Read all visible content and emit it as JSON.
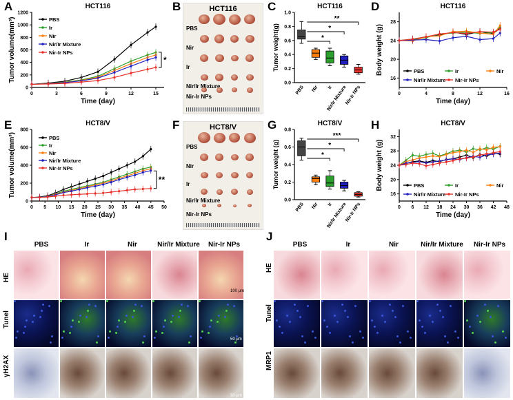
{
  "panels": {
    "A": {
      "label": "A",
      "title": "HCT116",
      "xlabel": "Time (day)",
      "ylabel": "Tumor volume(mm³)",
      "sig": "*"
    },
    "B": {
      "label": "B",
      "title": "HCT116",
      "rows": [
        "PBS",
        "Nir",
        "Ir",
        "Nir/Ir Mixture",
        "Nir-Ir NPs"
      ]
    },
    "C": {
      "label": "C",
      "title": "HCT116",
      "ylabel": "Tumor weight(g)",
      "sig": [
        "**",
        "*",
        "*"
      ]
    },
    "D": {
      "label": "D",
      "title": "HCT116",
      "xlabel": "Time (day)",
      "ylabel": "Body weight (g)"
    },
    "E": {
      "label": "E",
      "title": "HCT8/V",
      "xlabel": "Time (day)",
      "ylabel": "Tumor volume(mm³)",
      "sig": "**"
    },
    "F": {
      "label": "F",
      "title": "HCT8/V",
      "rows": [
        "PBS",
        "Nir",
        "Ir",
        "Nir/Ir Mixture",
        "Nir-Ir NPs"
      ]
    },
    "G": {
      "label": "G",
      "title": "HCT8/V",
      "ylabel": "Tumor weight (g)",
      "sig": [
        "***",
        "*",
        "*"
      ]
    },
    "H": {
      "label": "H",
      "title": "HCT8/V",
      "xlabel": "Time (day)",
      "ylabel": "Body weight (g)"
    },
    "I": {
      "label": "I",
      "cols": [
        "PBS",
        "Ir",
        "Nir",
        "Nir/Ir  Mixture",
        "Nir-Ir NPs"
      ],
      "rows": [
        "HE",
        "Tunel",
        "γH2AX"
      ],
      "scale1": "100 μm",
      "scale2": "50 μm",
      "scale3": "50 μm"
    },
    "J": {
      "label": "J",
      "cols": [
        "PBS",
        "Ir",
        "Nir",
        "Nir/Ir Mixture",
        "Nir-Ir NPs"
      ],
      "rows": [
        "HE",
        "Tunel",
        "MRP1"
      ]
    }
  },
  "colors": {
    "PBS": "#000000",
    "Ir": "#2ca02c",
    "Nir": "#ff7f0e",
    "Mixture": "#1f1fbf",
    "NPs": "#e8312a"
  },
  "chart_data": [
    {
      "id": "A",
      "type": "line",
      "title": "HCT116",
      "xlabel": "Time (day)",
      "ylabel": "Tumor volume(mm³)",
      "x": [
        0,
        2,
        4,
        6,
        8,
        10,
        12,
        14,
        15
      ],
      "xlim": [
        0,
        16
      ],
      "xticks": [
        0,
        3,
        6,
        9,
        12,
        15
      ],
      "ylim": [
        0,
        1200
      ],
      "yticks": [
        0,
        200,
        400,
        600,
        800,
        1000,
        1200
      ],
      "series": [
        {
          "name": "PBS",
          "values": [
            50,
            70,
            100,
            160,
            250,
            450,
            680,
            880,
            970
          ]
        },
        {
          "name": "Ir",
          "values": [
            50,
            65,
            85,
            120,
            180,
            300,
            420,
            520,
            560
          ]
        },
        {
          "name": "Nir",
          "values": [
            50,
            62,
            80,
            110,
            165,
            270,
            380,
            480,
            520
          ]
        },
        {
          "name": "Nir/Ir Mixture",
          "values": [
            50,
            60,
            78,
            105,
            150,
            240,
            340,
            440,
            480
          ]
        },
        {
          "name": "Nir-Ir NPs",
          "values": [
            50,
            55,
            65,
            85,
            110,
            160,
            230,
            290,
            320
          ]
        }
      ]
    },
    {
      "id": "C",
      "type": "box",
      "title": "HCT116",
      "ylabel": "Tumor weight(g)",
      "ylim": [
        0,
        1.0
      ],
      "yticks": [
        0.0,
        0.2,
        0.4,
        0.6,
        0.8,
        1.0
      ],
      "categories": [
        "PBS",
        "Nir",
        "Ir",
        "Nir/Ir Mixture",
        "Nir-Ir NPs"
      ],
      "boxes": [
        {
          "q1": 0.62,
          "q3": 0.75,
          "min": 0.56,
          "max": 0.87,
          "med": 0.66
        },
        {
          "q1": 0.36,
          "q3": 0.47,
          "min": 0.33,
          "max": 0.49,
          "med": 0.42
        },
        {
          "q1": 0.28,
          "q3": 0.45,
          "min": 0.24,
          "max": 0.49,
          "med": 0.35
        },
        {
          "q1": 0.26,
          "q3": 0.38,
          "min": 0.22,
          "max": 0.4,
          "med": 0.32
        },
        {
          "q1": 0.14,
          "q3": 0.22,
          "min": 0.12,
          "max": 0.26,
          "med": 0.18
        }
      ]
    },
    {
      "id": "D",
      "type": "line",
      "title": "HCT116",
      "xlabel": "Time (day)",
      "ylabel": "Body weight (g)",
      "x": [
        0,
        2,
        4,
        6,
        8,
        10,
        12,
        14,
        15
      ],
      "xlim": [
        0,
        16
      ],
      "xticks": [
        0,
        4,
        8,
        12,
        16
      ],
      "ylim": [
        14,
        30
      ],
      "yticks": [
        16,
        20,
        24,
        28
      ],
      "series": [
        {
          "name": "PBS",
          "values": [
            24,
            24.3,
            24.8,
            25.2,
            25.8,
            25.3,
            25.9,
            25.5,
            26.6
          ]
        },
        {
          "name": "Ir",
          "values": [
            24,
            24.2,
            24.6,
            25.4,
            25.6,
            25.8,
            25.5,
            25.7,
            26.8
          ]
        },
        {
          "name": "Nir",
          "values": [
            24,
            23.9,
            24.8,
            25,
            25.9,
            26,
            25.6,
            25.3,
            27.2
          ]
        },
        {
          "name": "Nir/Ir Mixture",
          "values": [
            24,
            24.1,
            24.2,
            23.9,
            24.6,
            24.9,
            24.2,
            24.4,
            25.6
          ]
        },
        {
          "name": "Nir-Ir NPs",
          "values": [
            24,
            24.3,
            24.8,
            25.4,
            25.7,
            25.5,
            25.9,
            25.8,
            26.4
          ]
        }
      ]
    },
    {
      "id": "E",
      "type": "line",
      "title": "HCT8/V",
      "xlabel": "Time (day)",
      "ylabel": "Tumor volume(mm³)",
      "x": [
        0,
        3,
        6,
        9,
        12,
        15,
        18,
        21,
        24,
        27,
        30,
        33,
        36,
        39,
        42,
        45
      ],
      "xlim": [
        0,
        50
      ],
      "xticks": [
        0,
        5,
        10,
        15,
        20,
        25,
        30,
        35,
        40,
        45,
        50
      ],
      "ylim": [
        0,
        800
      ],
      "yticks": [
        0,
        200,
        400,
        600,
        800
      ],
      "series": [
        {
          "name": "PBS",
          "values": [
            40,
            45,
            60,
            90,
            130,
            160,
            190,
            220,
            250,
            280,
            320,
            360,
            400,
            440,
            500,
            580
          ]
        },
        {
          "name": "Ir",
          "values": [
            40,
            43,
            55,
            80,
            110,
            130,
            150,
            170,
            190,
            210,
            240,
            270,
            300,
            330,
            360,
            380
          ]
        },
        {
          "name": "Nir",
          "values": [
            40,
            42,
            52,
            75,
            100,
            120,
            140,
            160,
            180,
            200,
            225,
            255,
            280,
            310,
            340,
            360
          ]
        },
        {
          "name": "Nir/Ir Mixture",
          "values": [
            40,
            42,
            50,
            70,
            95,
            110,
            130,
            150,
            165,
            185,
            210,
            240,
            265,
            290,
            320,
            340
          ]
        },
        {
          "name": "Nir-Ir NPs",
          "values": [
            40,
            40,
            45,
            55,
            65,
            70,
            75,
            80,
            85,
            90,
            100,
            110,
            120,
            130,
            135,
            140
          ]
        }
      ]
    },
    {
      "id": "G",
      "type": "box",
      "title": "HCT8/V",
      "ylabel": "Tumor weight (g)",
      "ylim": [
        0,
        0.8
      ],
      "yticks": [
        0.0,
        0.2,
        0.4,
        0.6,
        0.8
      ],
      "categories": [
        "PBS",
        "Nir",
        "Ir",
        "Nir/Ir Mixture",
        "Nir-Ir NPs"
      ],
      "boxes": [
        {
          "q1": 0.5,
          "q3": 0.67,
          "min": 0.45,
          "max": 0.7,
          "med": 0.6
        },
        {
          "q1": 0.2,
          "q3": 0.26,
          "min": 0.17,
          "max": 0.28,
          "med": 0.24
        },
        {
          "q1": 0.15,
          "q3": 0.27,
          "min": 0.12,
          "max": 0.33,
          "med": 0.19
        },
        {
          "q1": 0.13,
          "q3": 0.2,
          "min": 0.1,
          "max": 0.22,
          "med": 0.16
        },
        {
          "q1": 0.04,
          "q3": 0.08,
          "min": 0.03,
          "max": 0.09,
          "med": 0.06
        }
      ]
    },
    {
      "id": "H",
      "type": "line",
      "title": "HCT8/V",
      "xlabel": "Time (day)",
      "ylabel": "Body weight (g)",
      "x": [
        0,
        3,
        6,
        9,
        12,
        15,
        18,
        21,
        24,
        27,
        30,
        33,
        36,
        39,
        42,
        45
      ],
      "xlim": [
        0,
        48
      ],
      "xticks": [
        0,
        6,
        12,
        18,
        24,
        30,
        36,
        42,
        48
      ],
      "ylim": [
        14,
        34
      ],
      "yticks": [
        16,
        20,
        24,
        28,
        32
      ],
      "series": [
        {
          "name": "PBS",
          "values": [
            24,
            24.5,
            25,
            25.2,
            24.8,
            25.3,
            25,
            25.6,
            25.8,
            26.3,
            26.8,
            26.1,
            27,
            26.6,
            27.3,
            27.1
          ]
        },
        {
          "name": "Ir",
          "values": [
            24,
            25.4,
            26.8,
            26.5,
            27,
            27.3,
            26.6,
            27.2,
            27.9,
            28.2,
            27.7,
            28.6,
            28.3,
            28.9,
            28.5,
            29.3
          ]
        },
        {
          "name": "Nir",
          "values": [
            24,
            25,
            25.5,
            26,
            26.3,
            26.6,
            26.4,
            27,
            27.5,
            27.8,
            28.2,
            27.6,
            28.6,
            28.3,
            29,
            29.2
          ]
        },
        {
          "name": "Nir/Ir Mixture",
          "values": [
            24,
            24.6,
            24.8,
            25,
            24.6,
            24.9,
            25.2,
            25.5,
            25.8,
            25.6,
            26.1,
            26.5,
            26.2,
            26.9,
            27.1,
            27.4
          ]
        },
        {
          "name": "Nir-Ir NPs",
          "values": [
            24,
            24.2,
            24.6,
            24.4,
            23.8,
            24.2,
            24.6,
            24.9,
            25.3,
            25.8,
            26,
            26.3,
            26.8,
            27.2,
            27.5,
            27.8
          ]
        }
      ]
    }
  ]
}
